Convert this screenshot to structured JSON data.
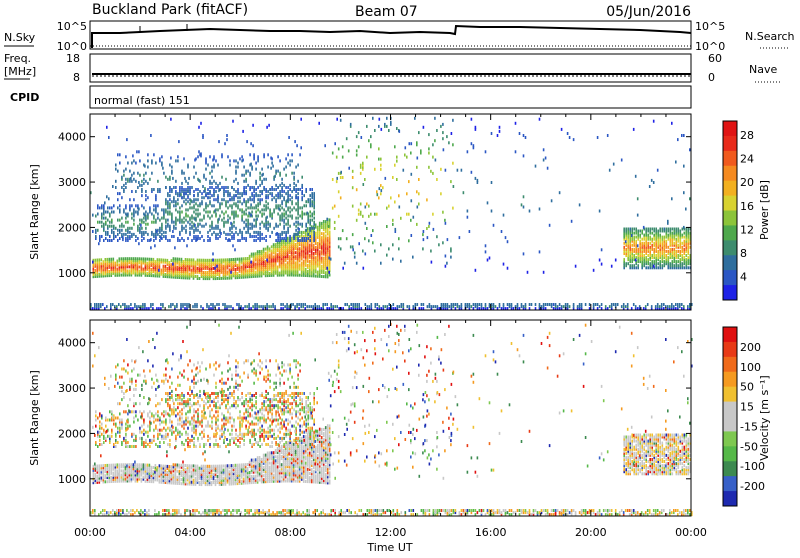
{
  "header": {
    "station": "Buckland Park (fitACF)",
    "beam": "Beam 07",
    "date": "05/Jun/2016"
  },
  "top_panels": {
    "sky": {
      "label": "N.Sky",
      "ticks_left": [
        "10^5",
        "10^0"
      ],
      "ticks_right": [
        "10^5",
        "10^0"
      ],
      "right_label": "N.Search"
    },
    "freq": {
      "label_line1": "Freq.",
      "label_line2": "[MHz]",
      "ticks_left": [
        "18",
        "8"
      ],
      "ticks_right": [
        "60",
        "0"
      ],
      "right_label": "Nave"
    },
    "cpid": {
      "label": "CPID",
      "text": "normal (fast) 151"
    }
  },
  "chart_data": [
    {
      "type": "heatmap",
      "title": "Power",
      "ylabel": "Slant Range [km]",
      "xlabel": "",
      "x_ticks": [
        "00:00",
        "04:00",
        "08:00",
        "12:00",
        "16:00",
        "20:00",
        "00:00"
      ],
      "y_ticks": [
        "1000",
        "2000",
        "3000",
        "4000"
      ],
      "ylim": [
        180,
        4500
      ],
      "xlim_hours": [
        0,
        24
      ],
      "colorbar": {
        "label": "Power [dB]",
        "ticks": [
          "4",
          "8",
          "12",
          "16",
          "20",
          "24",
          "28"
        ],
        "colors": [
          "#1e22e6",
          "#2b57c4",
          "#2f6e9e",
          "#3d8c6e",
          "#4ea84c",
          "#8cc43a",
          "#d8d230",
          "#f2b020",
          "#f58a20",
          "#f05a1e",
          "#e82a1a",
          "#e01414"
        ]
      }
    },
    {
      "type": "heatmap",
      "title": "Velocity",
      "ylabel": "Slant Range [km]",
      "xlabel": "Time UT",
      "x_ticks": [
        "00:00",
        "04:00",
        "08:00",
        "12:00",
        "16:00",
        "20:00",
        "00:00"
      ],
      "y_ticks": [
        "1000",
        "2000",
        "3000",
        "4000"
      ],
      "ylim": [
        180,
        4500
      ],
      "xlim_hours": [
        0,
        24
      ],
      "colorbar": {
        "label": "Velocity [m s⁻¹]",
        "ticks": [
          "200",
          "100",
          "50",
          "15",
          "-15",
          "-50",
          "-100",
          "-200"
        ],
        "colors": [
          "#1e2ab0",
          "#3760c8",
          "#3c8a50",
          "#55b848",
          "#7ec850",
          "#c8c8c8",
          "#c8c8c8",
          "#f0c030",
          "#f59a20",
          "#f06a1a",
          "#e83a16",
          "#e01010"
        ]
      }
    }
  ]
}
